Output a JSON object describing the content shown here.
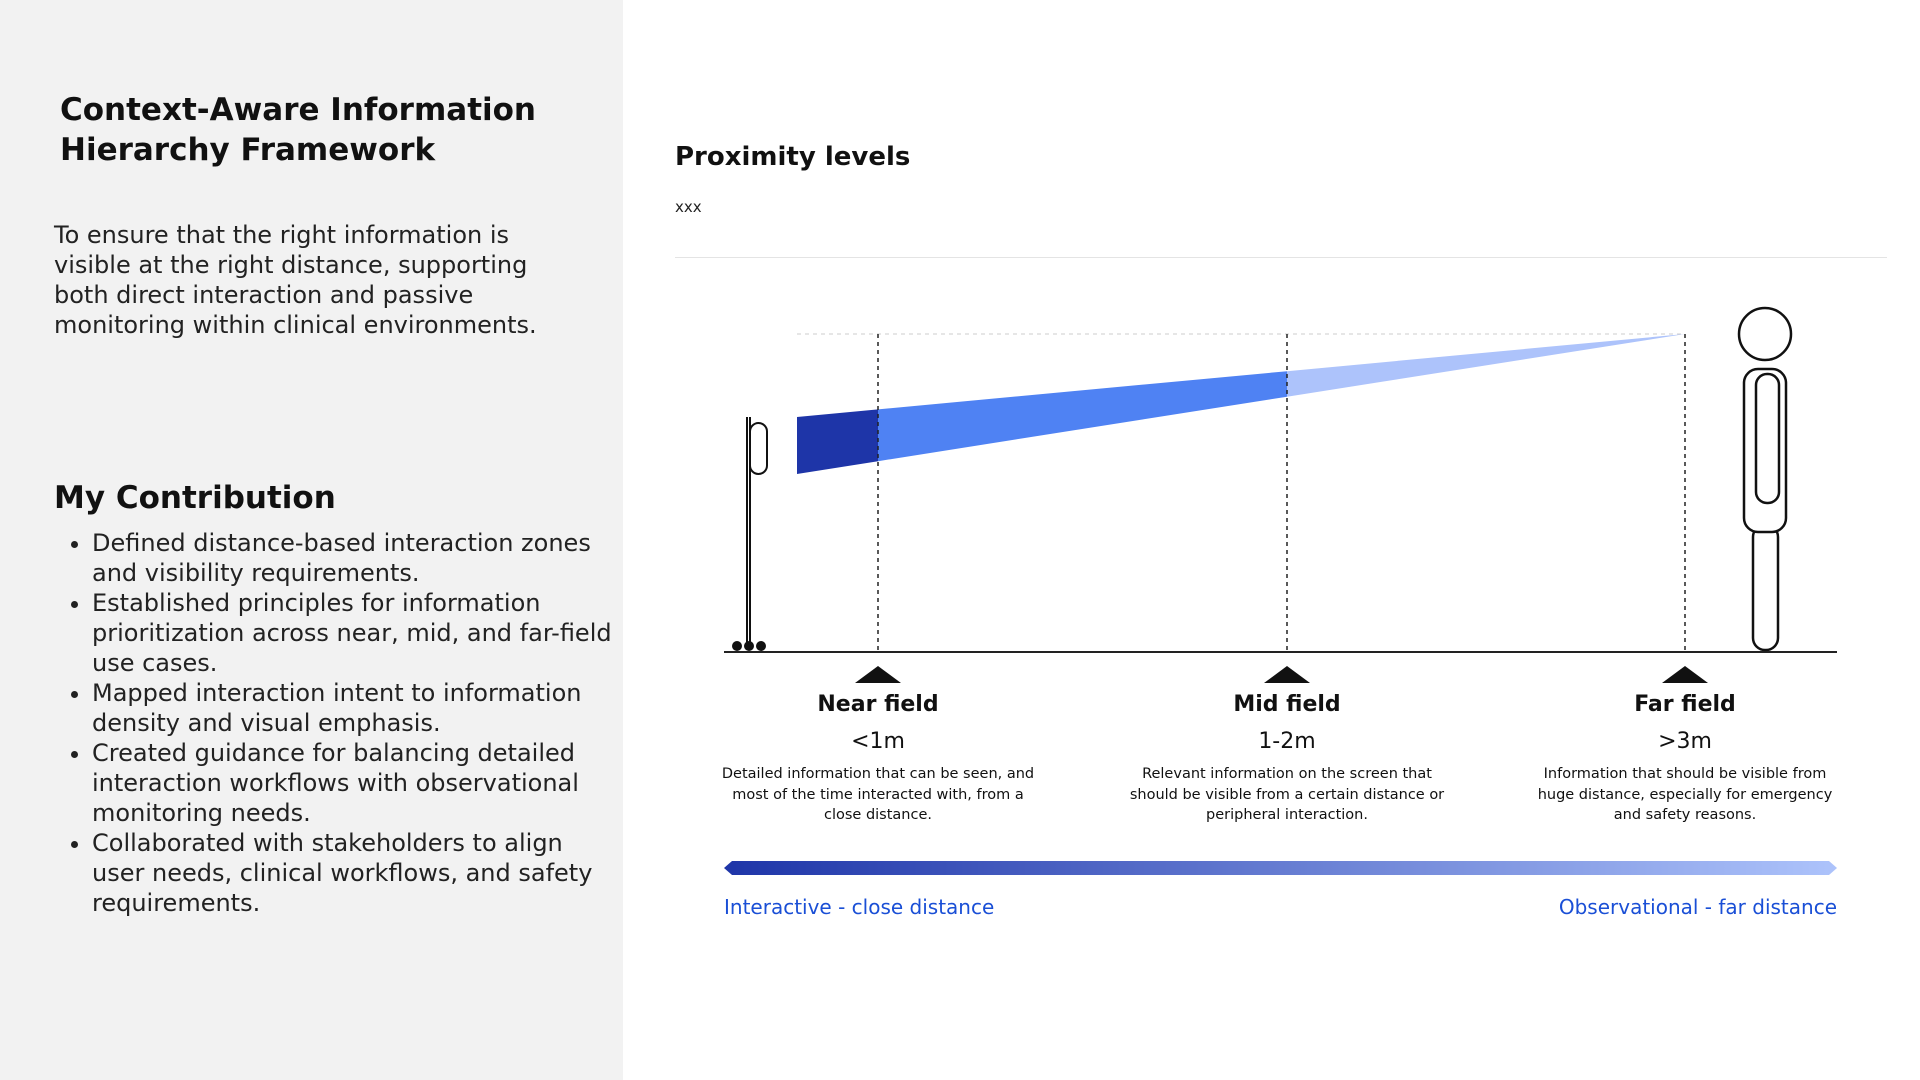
{
  "sidebar": {
    "title": "Context-Aware Information Hierarchy Framework",
    "intro": "To ensure that the right information is visible at the right distance, supporting both direct interaction and passive monitoring within clinical environments.",
    "contribution": {
      "heading": "My Contribution",
      "items": [
        "Defined distance-based interaction zones and visibility requirements.",
        "Established principles for information prioritization across near, mid, and far-field use cases.",
        "Mapped interaction intent to information density and visual emphasis.",
        "Created guidance for balancing detailed interaction workflows with observational monitoring needs.",
        "Collaborated with stakeholders to align user needs, clinical workflows, and safety requirements."
      ]
    }
  },
  "diagram": {
    "title": "Proximity levels",
    "subtitle": "xxx",
    "zones": [
      {
        "label": "Near field",
        "distance": "<1m",
        "description": "Detailed information that can be seen, and most of the time interacted with, from a close distance."
      },
      {
        "label": "Mid field",
        "distance": "1-2m",
        "description": "Relevant information on the screen that should be visible from a certain distance or peripheral interaction."
      },
      {
        "label": "Far field",
        "distance": ">3m",
        "description": "Information that should be visible from huge distance, especially for emergency and safety reasons."
      }
    ],
    "scale": {
      "left": "Interactive - close distance",
      "right": "Observational - far distance"
    }
  }
}
